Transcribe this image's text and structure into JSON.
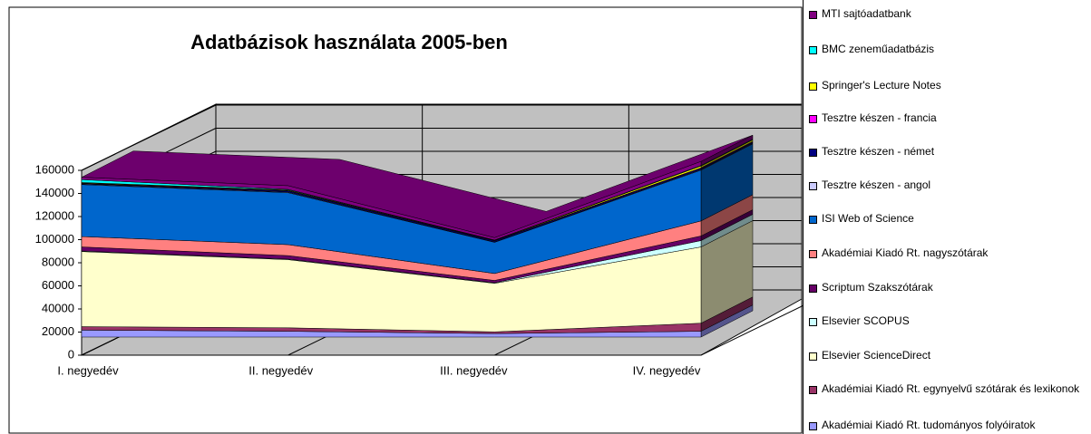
{
  "chart_data": {
    "type": "area3d",
    "title": "Adatbázisok használata 2005-ben",
    "categories": [
      "I. negyedév",
      "II. negyedév",
      "III. negyedév",
      "IV. negyedév"
    ],
    "ylim": [
      0,
      160000
    ],
    "yticks": [
      0,
      20000,
      40000,
      60000,
      80000,
      100000,
      120000,
      140000,
      160000
    ],
    "stacked": true,
    "grid": true,
    "series": [
      {
        "name": "Akadémiai Kiadó Rt. tudományos folyóiratok",
        "color": "#9999ff",
        "values": [
          6000,
          5000,
          3000,
          5000
        ]
      },
      {
        "name": "Akadémiai Kiadó Rt. egynyelvű szótárak és lexikonok",
        "color": "#993366",
        "values": [
          3000,
          3000,
          1500,
          7000
        ]
      },
      {
        "name": "Elsevier ScienceDirect",
        "color": "#ffffcc",
        "values": [
          65000,
          59000,
          42000,
          66000
        ]
      },
      {
        "name": "Elsevier SCOPUS",
        "color": "#ccffff",
        "values": [
          500,
          500,
          500,
          5500
        ]
      },
      {
        "name": "Scriptum Szakszótárak",
        "color": "#660066",
        "values": [
          3500,
          3000,
          2000,
          4000
        ]
      },
      {
        "name": "Akadémiai Kiadó Rt. nagyszótárak",
        "color": "#ff8080",
        "values": [
          9000,
          9500,
          6000,
          13000
        ]
      },
      {
        "name": "ISI Web of Science",
        "color": "#0066cc",
        "values": [
          45000,
          45000,
          27000,
          44000
        ]
      },
      {
        "name": "Tesztre készen - angol",
        "color": "#ccccff",
        "values": [
          500,
          500,
          300,
          500
        ]
      },
      {
        "name": "Tesztre készen - német",
        "color": "#000080",
        "values": [
          500,
          1000,
          1000,
          1000
        ]
      },
      {
        "name": "Tesztre készen - francia",
        "color": "#ff00ff",
        "values": [
          300,
          300,
          200,
          500
        ]
      },
      {
        "name": "Springer's Lecture Notes",
        "color": "#ffff00",
        "values": [
          500,
          500,
          300,
          1500
        ]
      },
      {
        "name": "BMC zeneműadatbázis",
        "color": "#00ffff",
        "values": [
          2500,
          500,
          200,
          500
        ]
      },
      {
        "name": "MTI sajtóadatbank",
        "color": "#800080",
        "values": [
          2000,
          3200,
          2000,
          3500
        ]
      }
    ]
  }
}
